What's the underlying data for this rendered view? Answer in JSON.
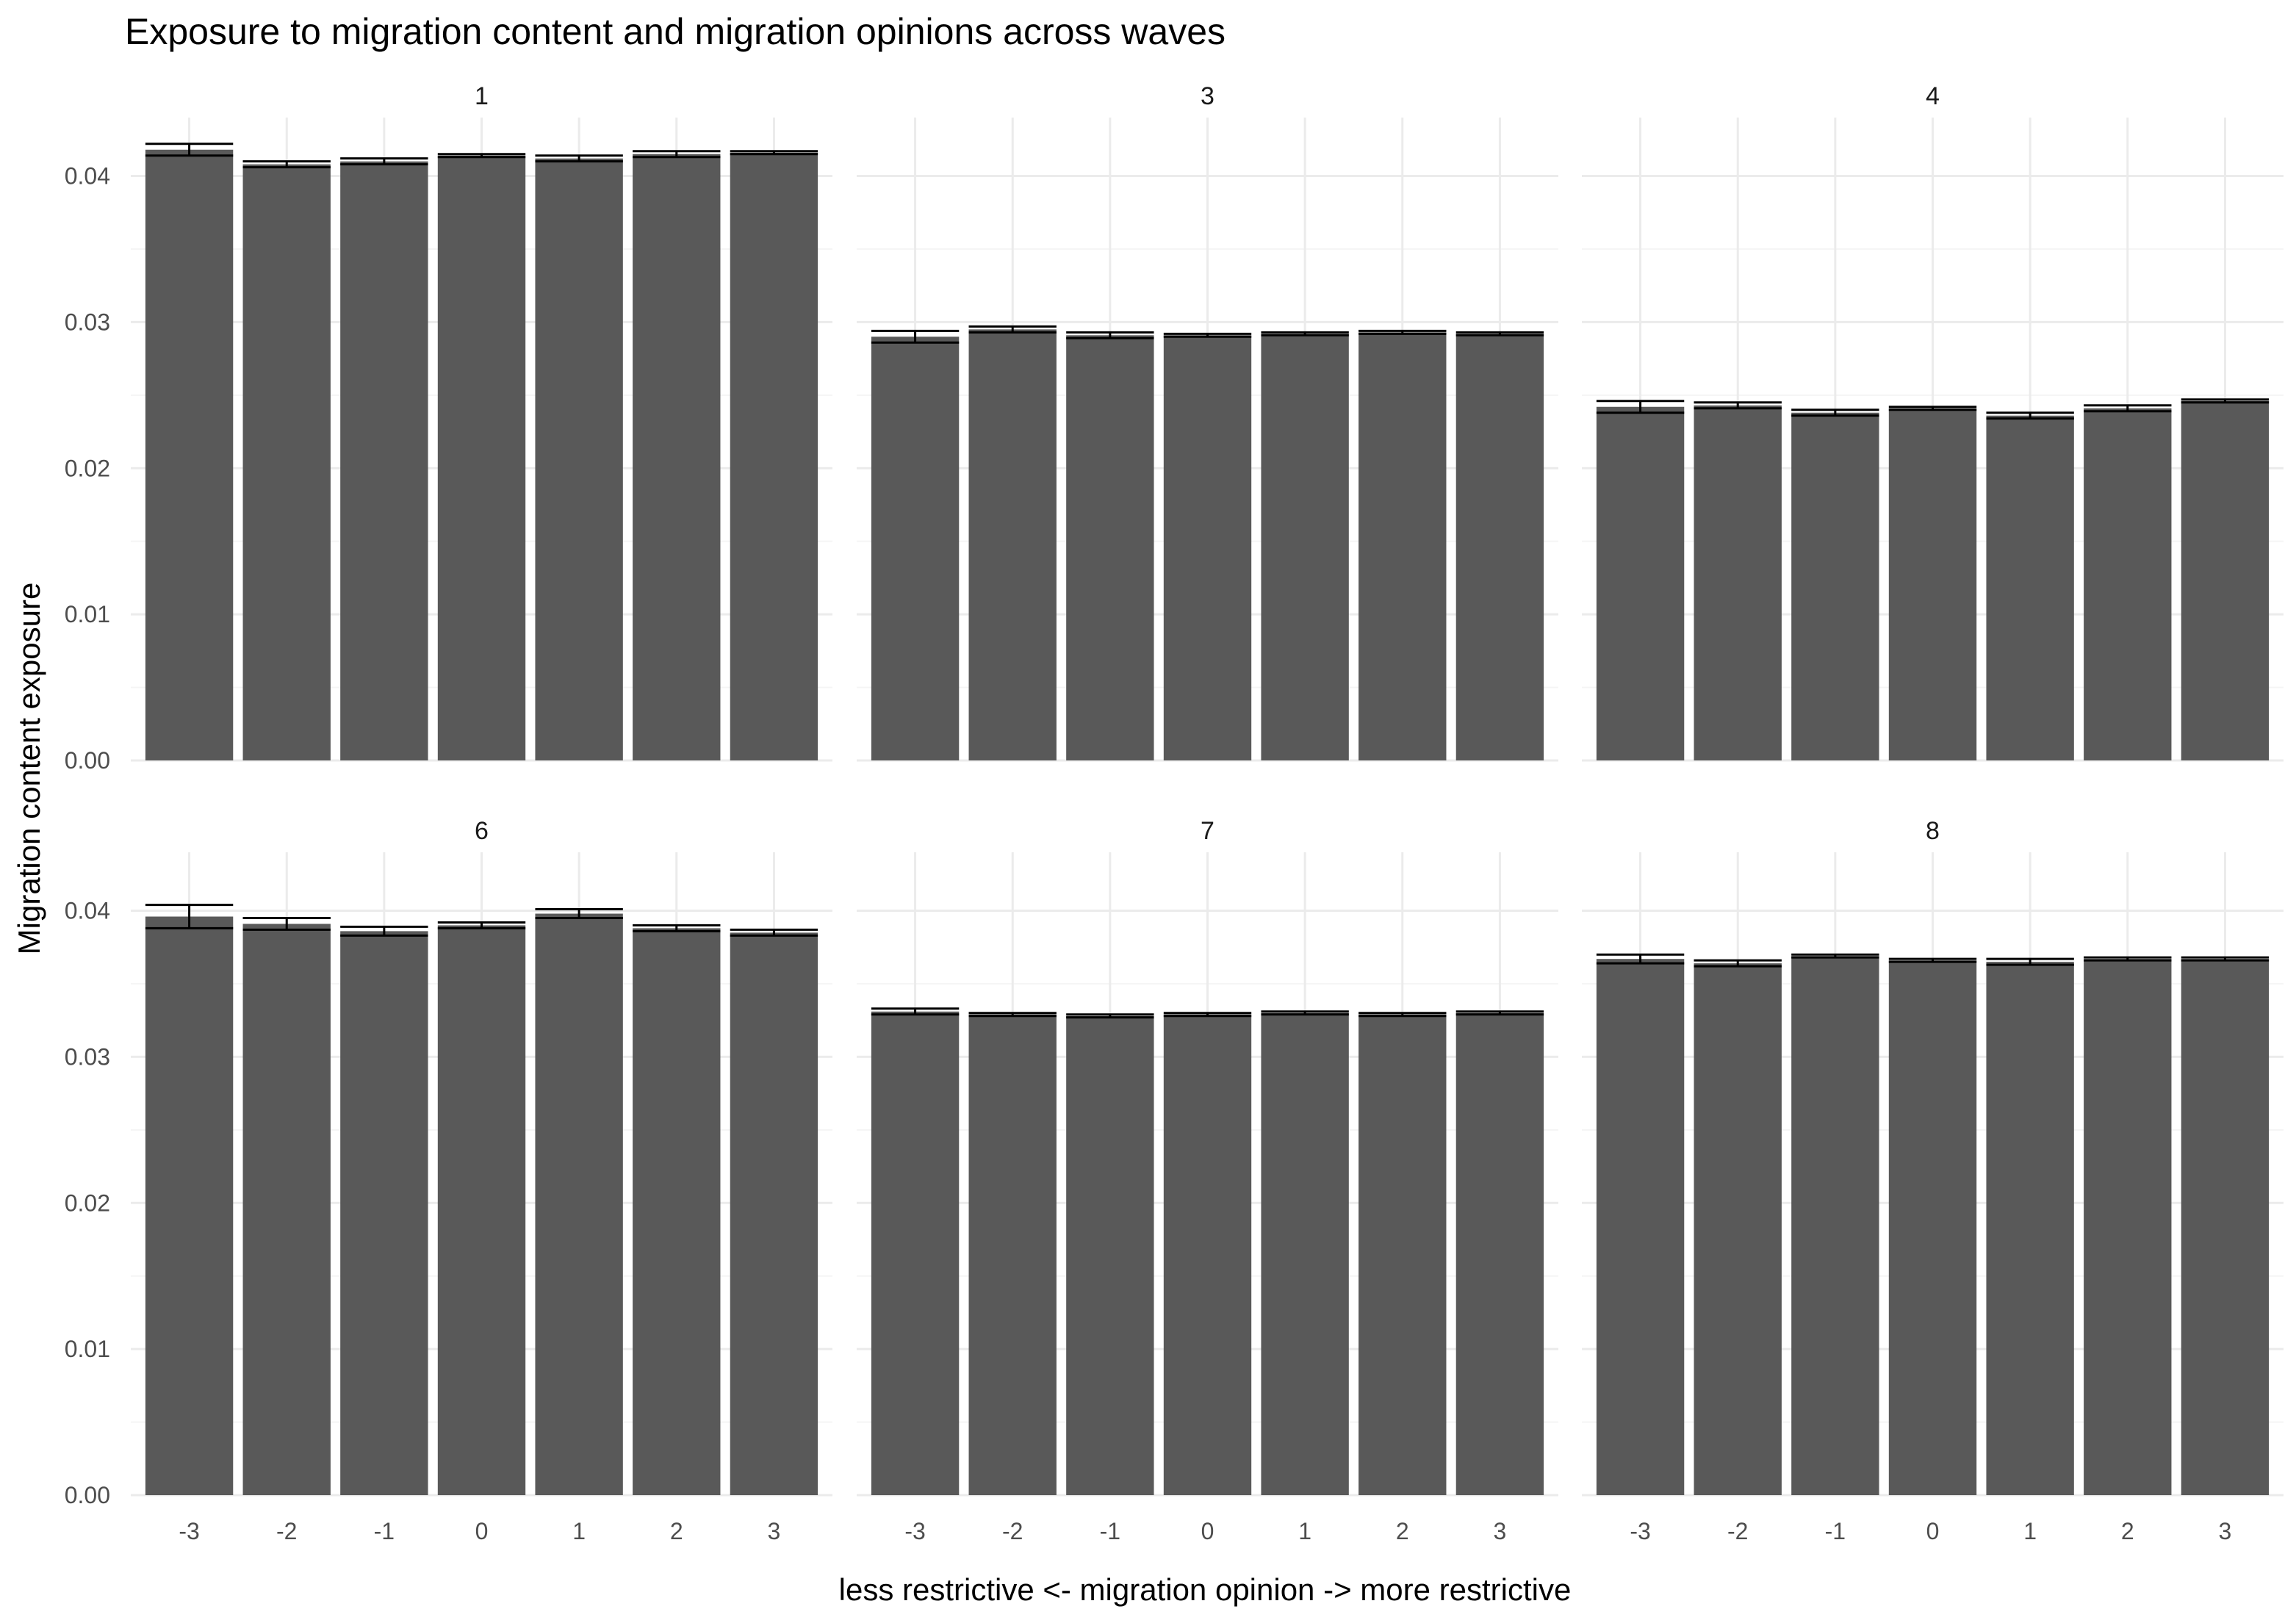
{
  "chart_data": {
    "type": "bar",
    "title": "Exposure to migration content and migration opinions across waves",
    "xlabel": "less restrictive <- migration opinion -> more restrictive",
    "ylabel": "Migration content exposure",
    "categories": [
      "-3",
      "-2",
      "-1",
      "0",
      "1",
      "2",
      "3"
    ],
    "ylim": [
      0,
      0.044
    ],
    "yticks": [
      "0.00",
      "0.01",
      "0.02",
      "0.03",
      "0.04"
    ],
    "grid": true,
    "colors": {
      "bar": "#595959",
      "error_bar": "#000000",
      "grid_major": "#ebebeb",
      "grid_minor": "#f5f5f5"
    },
    "panels": [
      {
        "label": "1",
        "values": [
          0.0418,
          0.0408,
          0.041,
          0.0414,
          0.0412,
          0.0415,
          0.0416
        ],
        "err": [
          0.0004,
          0.0002,
          0.0002,
          0.0001,
          0.0002,
          0.0002,
          0.0001
        ]
      },
      {
        "label": "3",
        "values": [
          0.029,
          0.0295,
          0.0291,
          0.0291,
          0.0292,
          0.0293,
          0.0292
        ],
        "err": [
          0.0004,
          0.0002,
          0.0002,
          0.0001,
          0.0001,
          0.0001,
          0.0001
        ]
      },
      {
        "label": "4",
        "values": [
          0.0242,
          0.0243,
          0.0238,
          0.0241,
          0.0236,
          0.0241,
          0.0246
        ],
        "err": [
          0.0004,
          0.0002,
          0.0002,
          0.0001,
          0.0002,
          0.0002,
          0.0001
        ]
      },
      {
        "label": "6",
        "values": [
          0.0396,
          0.0391,
          0.0386,
          0.039,
          0.0398,
          0.0388,
          0.0385
        ],
        "err": [
          0.0008,
          0.0004,
          0.0003,
          0.0002,
          0.0003,
          0.0002,
          0.0002
        ]
      },
      {
        "label": "7",
        "values": [
          0.0331,
          0.0329,
          0.0328,
          0.0329,
          0.033,
          0.0329,
          0.033
        ],
        "err": [
          0.0002,
          0.0001,
          0.0001,
          0.0001,
          0.0001,
          0.0001,
          0.0001
        ]
      },
      {
        "label": "8",
        "values": [
          0.0367,
          0.0364,
          0.0369,
          0.0366,
          0.0365,
          0.0367,
          0.0367
        ],
        "err": [
          0.0003,
          0.0002,
          0.0001,
          0.0001,
          0.0002,
          0.0001,
          0.0001
        ]
      }
    ]
  }
}
